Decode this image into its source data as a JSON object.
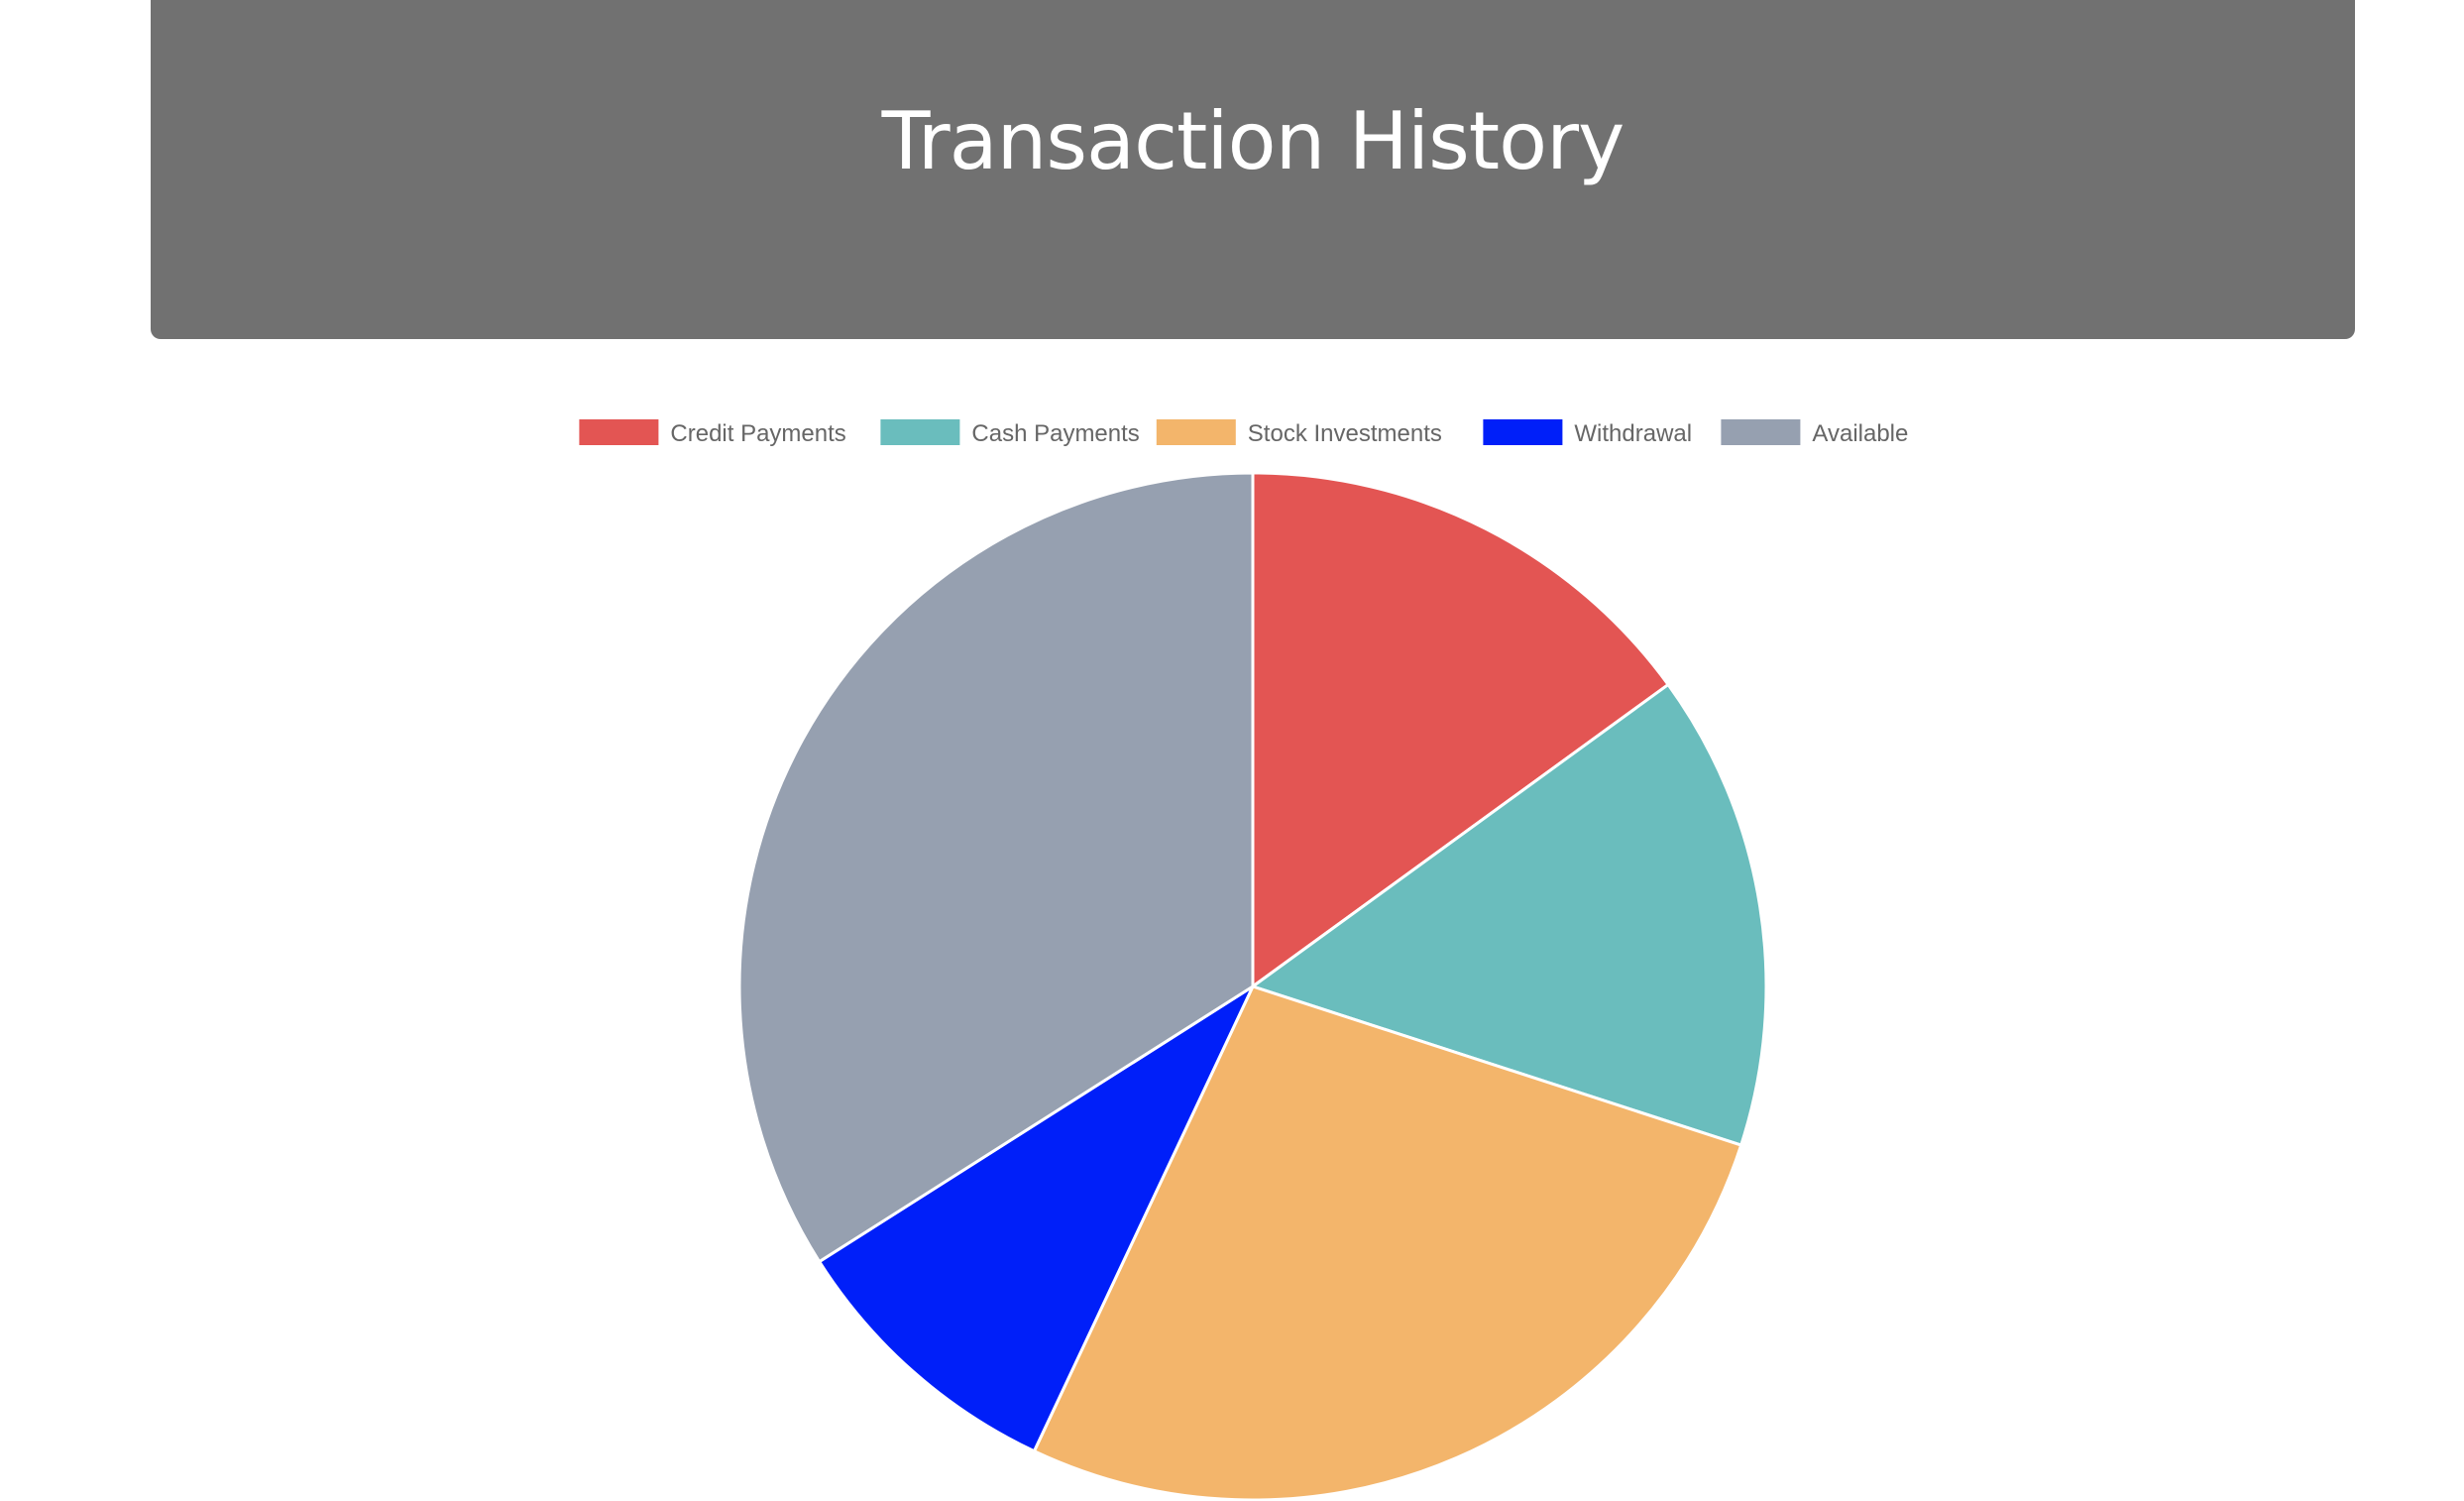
{
  "header": {
    "title": "Transaction History"
  },
  "chart_data": {
    "type": "pie",
    "title": "",
    "legend_position": "top",
    "start_angle": "top, clockwise",
    "slices": [
      {
        "label": "Credit Payments",
        "value": 15,
        "color": "#e35553"
      },
      {
        "label": "Cash Payments",
        "value": 15,
        "color": "#6abdbd"
      },
      {
        "label": "Stock Investments",
        "value": 27,
        "color": "#f3b56b"
      },
      {
        "label": "Withdrawal",
        "value": 9,
        "color": "#001ff9"
      },
      {
        "label": "Available",
        "value": 34,
        "color": "#96a0b0"
      }
    ]
  }
}
